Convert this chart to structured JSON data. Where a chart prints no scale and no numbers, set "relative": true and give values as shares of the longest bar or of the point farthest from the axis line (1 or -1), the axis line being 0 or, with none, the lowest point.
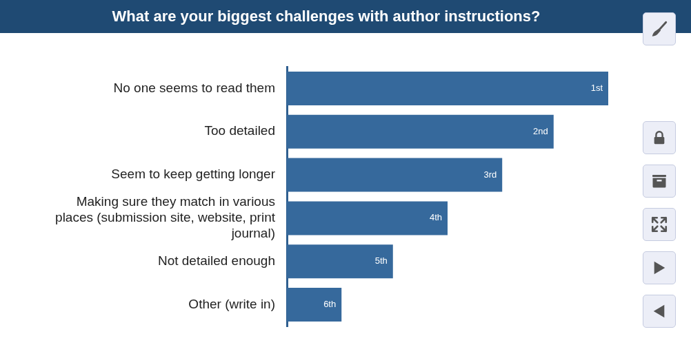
{
  "chart_data": {
    "type": "bar",
    "orientation": "horizontal",
    "title": "What are your biggest challenges with author instructions?",
    "categories": [
      "No one seems to read them",
      "Too detailed",
      "Seem to keep getting longer",
      "Making sure they match in various places (submission site, website, print journal)",
      "Not detailed enough",
      "Other (write in)"
    ],
    "values": [
      1,
      0.83,
      0.67,
      0.5,
      0.33,
      0.17
    ],
    "relative": true,
    "color": "#36699c",
    "annotations": [
      {
        "text": "1st",
        "x": 1,
        "y": "No one seems to read them"
      },
      {
        "text": "2nd",
        "x": 0.83,
        "y": "Too detailed"
      },
      {
        "text": "3rd",
        "x": 0.67,
        "y": "Seem to keep getting longer"
      },
      {
        "text": "4th",
        "x": 0.5,
        "y": "Making sure they match in various places (submission site, website, print journal)"
      },
      {
        "text": "5th",
        "x": 0.33,
        "y": "Not detailed enough"
      },
      {
        "text": "6th",
        "x": 0.17,
        "y": "Other (write in)"
      }
    ]
  }
}
